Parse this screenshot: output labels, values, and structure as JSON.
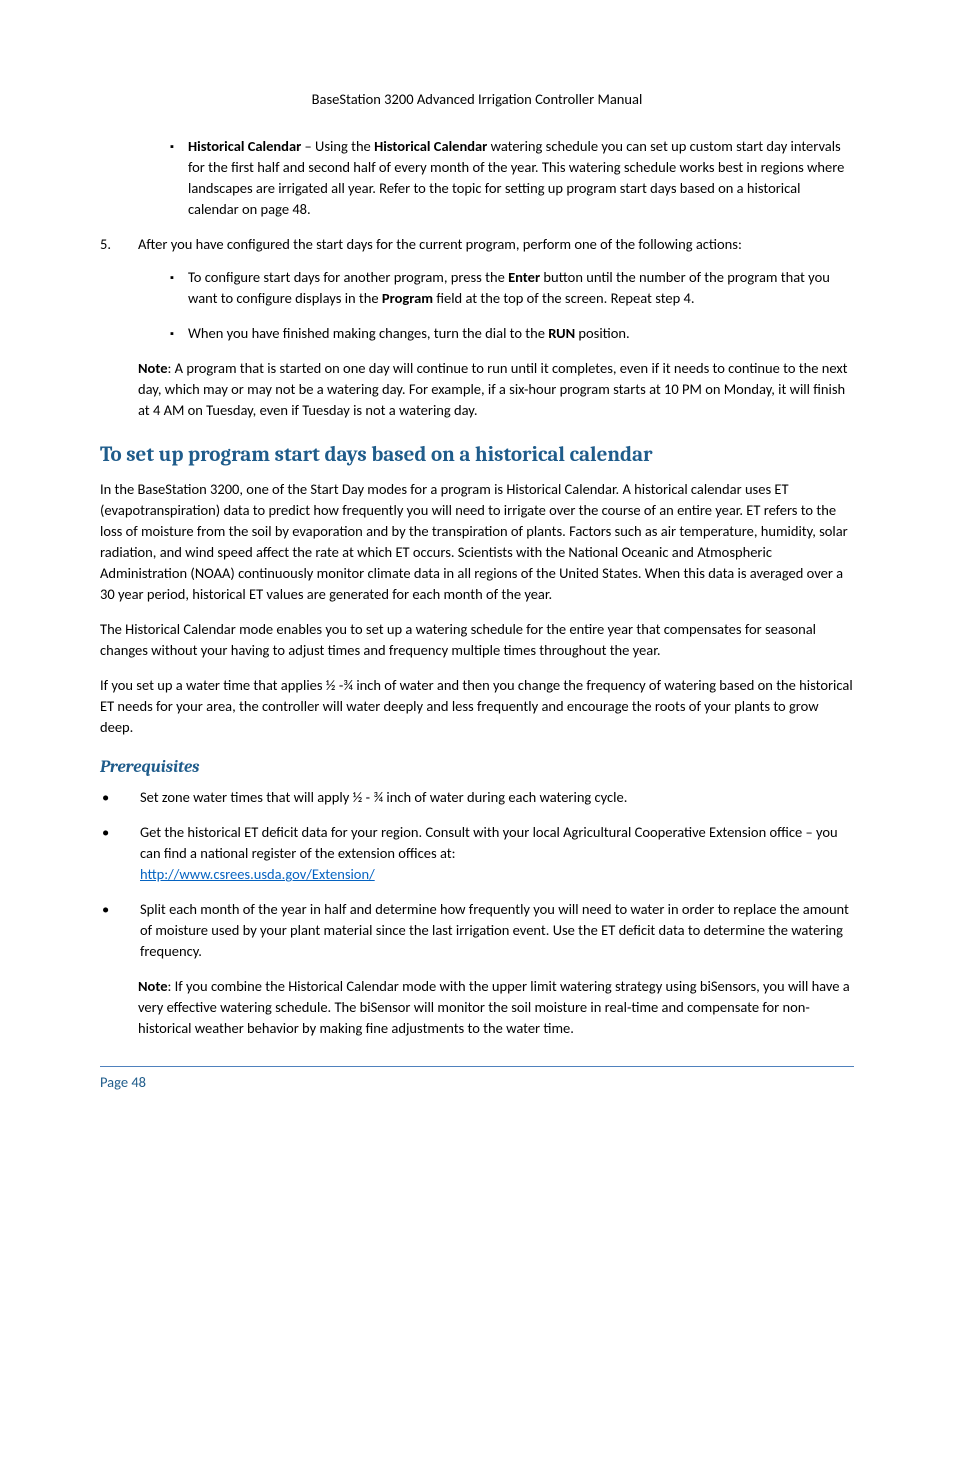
{
  "header": {
    "title": "BaseStation 3200 Advanced Irrigation Controller Manual"
  },
  "intro_bullet": {
    "label_bold": "Historical Calendar",
    "text_after": " – Using the ",
    "label_bold2": "Historical Calendar",
    "text_end": " watering schedule you can set up custom start day intervals for the first half and second half of every month of the year. This watering schedule works best in regions where landscapes are irrigated all year. Refer to the topic for setting up program start days based on a historical calendar on page 48."
  },
  "step5": {
    "number": "5.",
    "text": "After you have configured the start days for the current program, perform one of the following actions:",
    "sub1_a": "To configure start days for another program, press the ",
    "sub1_b": "Enter",
    "sub1_c": " button until the number of the program that you want to configure displays in the ",
    "sub1_d": "Program",
    "sub1_e": " field at the top of the screen. Repeat step 4.",
    "sub2_a": "When you have finished making changes, turn the dial to the ",
    "sub2_b": "RUN",
    "sub2_c": " position."
  },
  "note1": {
    "bold": "Note",
    "text": ": A program that is started on one day will continue to run until it completes, even if it needs to continue to the next day, which may or may not be a watering day. For example, if a six-hour program starts at 10 PM on Monday, it will finish at 4 AM on Tuesday, even if Tuesday is not a watering day."
  },
  "section": {
    "heading": "To set up program start days based on a historical calendar",
    "p1": "In the BaseStation 3200, one of the Start Day modes for a program is Historical Calendar. A historical calendar uses ET (evapotranspiration) data to predict how frequently you will need to irrigate over the course of an entire year. ET refers to the loss of moisture from the soil by evaporation and by the transpiration of plants. Factors such as air temperature, humidity, solar radiation, and wind speed affect the rate at which ET occurs. Scientists with the National Oceanic and Atmospheric Administration (NOAA) continuously monitor climate data in all regions of the United States. When this data is averaged over a 30 year period, historical ET values are generated for each month of the year.",
    "p2": "The Historical Calendar mode enables you to set up a watering schedule for the entire year that compensates for seasonal changes without your having to adjust times and frequency multiple times throughout the year.",
    "p3": "If you set up a water time that applies ½ -¾ inch of water and then you change the frequency of watering based on the historical ET needs for your area, the controller will water deeply and less frequently and encourage the roots of your plants to grow deep."
  },
  "prereq": {
    "heading": "Prerequisites",
    "b1": "Set zone water times that will apply ½ - ¾ inch of water during each watering cycle.",
    "b2_a": "Get the historical ET deficit data for your region. Consult with your local Agricultural Cooperative Extension office – you can find a national register of the extension offices at: ",
    "b2_link": "http://www.csrees.usda.gov/Extension/",
    "b3": "Split each month of the year in half and determine how frequently you will need to water in order to replace the amount of moisture used by your plant material since the last irrigation event. Use the ET deficit data to determine the watering frequency.",
    "note_bold": "Note",
    "note_text": ": If you combine the Historical Calendar mode with the upper limit watering strategy using biSensors, you will have a very effective watering schedule. The biSensor will monitor the soil moisture in real-time and compensate for non-historical weather behavior by making fine adjustments to the water time."
  },
  "footer": {
    "page": "Page 48"
  },
  "glyphs": {
    "square": "▪",
    "dot": "•"
  }
}
